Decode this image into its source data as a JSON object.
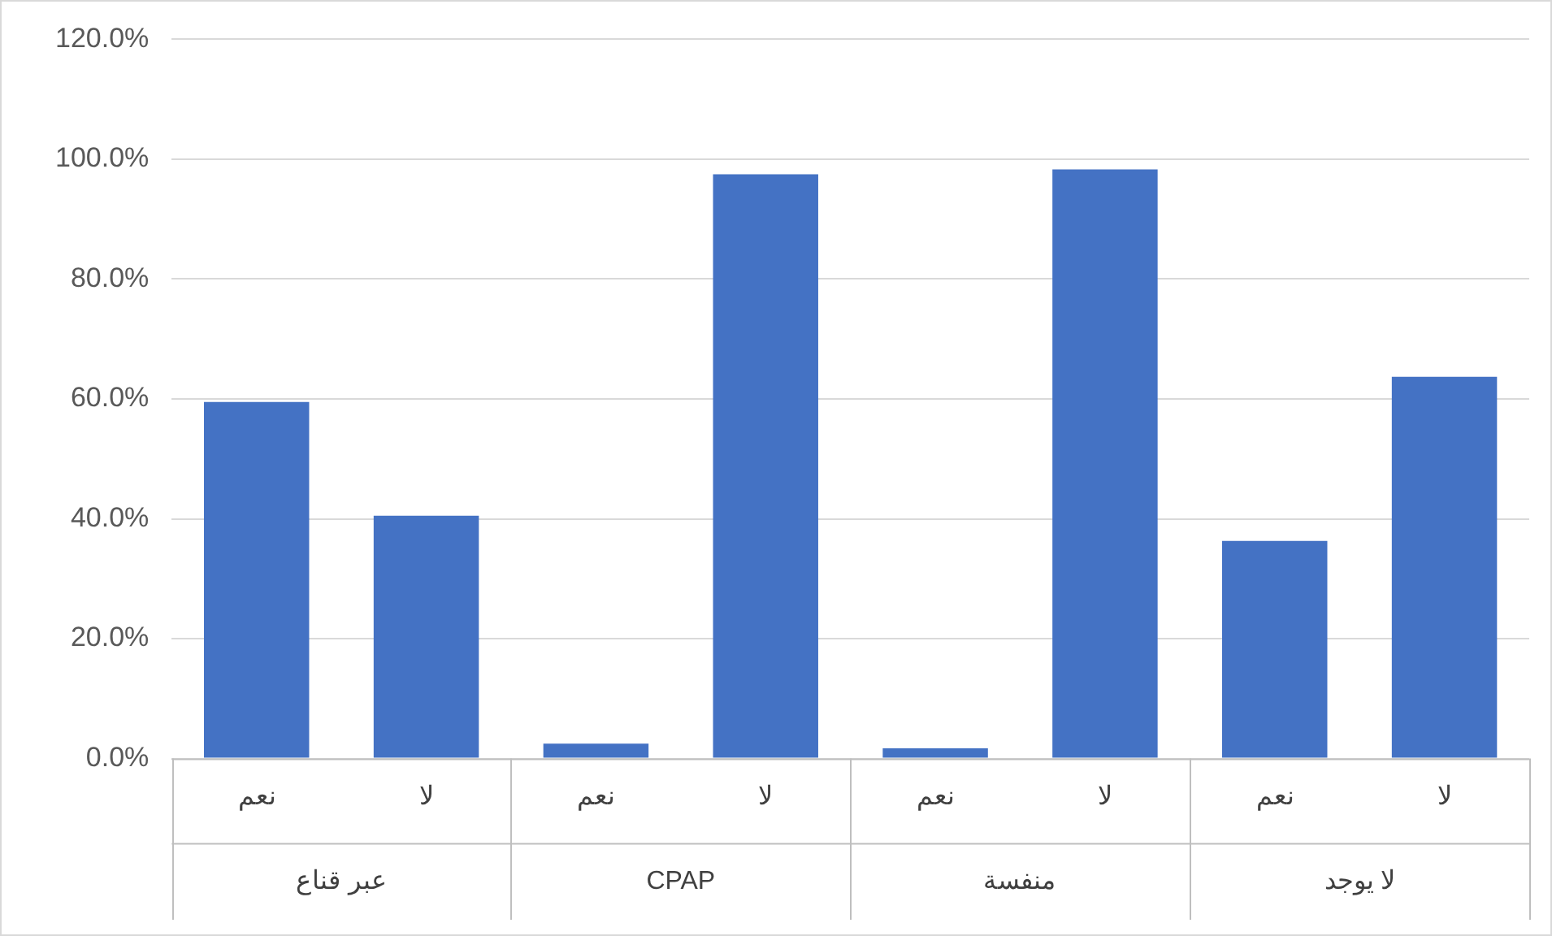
{
  "chart_data": {
    "type": "bar",
    "categories": [
      "نعم",
      "لا",
      "نعم",
      "لا",
      "نعم",
      "لا",
      "نعم",
      "لا"
    ],
    "values": [
      59.5,
      40.5,
      2.5,
      97.5,
      1.7,
      98.3,
      36.3,
      63.7
    ],
    "color": "#4472c4",
    "ylim": [
      0,
      120
    ],
    "yticks": [
      {
        "value": 0,
        "label": "0.0%"
      },
      {
        "value": 20,
        "label": "20.0%"
      },
      {
        "value": 40,
        "label": "40.0%"
      },
      {
        "value": 60,
        "label": "60.0%"
      },
      {
        "value": 80,
        "label": "80.0%"
      },
      {
        "value": 100,
        "label": "100.0%"
      },
      {
        "value": 120,
        "label": "120.0%"
      }
    ],
    "grid": "y",
    "legend": false,
    "annotations": [
      "عبر قناع",
      "CPAP",
      "منفسة",
      "لا يوجد"
    ]
  }
}
